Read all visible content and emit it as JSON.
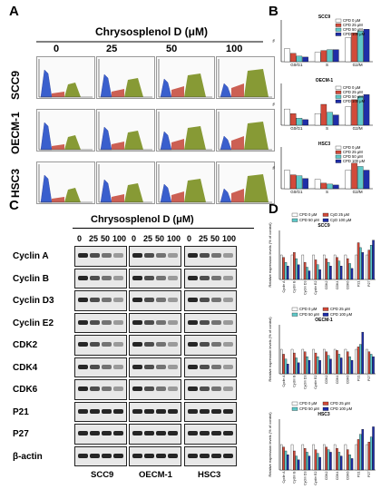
{
  "panel_a": {
    "letter": "A",
    "title": "Chrysosplenol D (μM)",
    "concentrations": [
      "0",
      "25",
      "50",
      "100"
    ],
    "cell_lines": [
      "SCC9",
      "OECM-1",
      "HSC3"
    ]
  },
  "panel_b": {
    "letter": "B"
  },
  "panel_c": {
    "letter": "C",
    "title": "Chrysosplenol D (μM)",
    "lanes": [
      "0",
      "25",
      "50",
      "100"
    ],
    "proteins": [
      "Cyclin A",
      "Cyclin B",
      "Cyclin D3",
      "Cyclin E2",
      "CDK2",
      "CDK4",
      "CDK6",
      "P21",
      "P27",
      "β-actin"
    ],
    "cell_lines": [
      "SCC9",
      "OECM-1",
      "HSC3"
    ]
  },
  "panel_d": {
    "letter": "D"
  },
  "colors": {
    "g1": "#3a5fcd",
    "s": "#c0392b",
    "g2m": "#7a8f1f",
    "cpd0": "#ffffff",
    "cpd25": "#d24a3a",
    "cpd50": "#5ec8c8",
    "cpd100": "#1f2ea8"
  },
  "chart_data": [
    {
      "id": "B-SCC9",
      "type": "bar",
      "title": "SCC9",
      "categories": [
        "G0/G1",
        "S",
        "G2/M"
      ],
      "ylabel": "%",
      "series": [
        {
          "name": "CPD 0 μM",
          "values": [
            28,
            20,
            52
          ]
        },
        {
          "name": "CPD 25 μM",
          "values": [
            18,
            24,
            62
          ]
        },
        {
          "name": "CPD 50 μM",
          "values": [
            12,
            26,
            66
          ]
        },
        {
          "name": "CPD 100 μM",
          "values": [
            10,
            26,
            70
          ]
        }
      ],
      "legend": "top-right"
    },
    {
      "id": "B-OECM-1",
      "type": "bar",
      "title": "OECM-1",
      "categories": [
        "G0/G1",
        "S",
        "G2/M"
      ],
      "ylabel": "%",
      "series": [
        {
          "name": "CPD 0 μM",
          "values": [
            35,
            25,
            40
          ]
        },
        {
          "name": "CPD 25 μM",
          "values": [
            25,
            45,
            55
          ]
        },
        {
          "name": "CPD 50 μM",
          "values": [
            15,
            28,
            62
          ]
        },
        {
          "name": "CPD 100 μM",
          "values": [
            12,
            22,
            66
          ]
        }
      ],
      "legend": "top-right"
    },
    {
      "id": "B-HSC3",
      "type": "bar",
      "title": "HSC3",
      "categories": [
        "G0/G1",
        "S",
        "G2/M"
      ],
      "ylabel": "%",
      "series": [
        {
          "name": "CPD 0 μM",
          "values": [
            40,
            20,
            40
          ]
        },
        {
          "name": "CPD 25 μM",
          "values": [
            30,
            12,
            55
          ]
        },
        {
          "name": "CPD 50 μM",
          "values": [
            28,
            10,
            48
          ]
        },
        {
          "name": "CPD 100 μM",
          "values": [
            22,
            8,
            40
          ]
        }
      ],
      "legend": "top-right"
    },
    {
      "id": "D-SCC9",
      "type": "bar",
      "title": "SCC9",
      "categories": [
        "Cyclin A",
        "Cyclin B",
        "Cyclin D3",
        "Cyclin E2",
        "CDK2",
        "CDK4",
        "CDK6",
        "P21",
        "P27"
      ],
      "ylabel": "Relative expression levels (% of control)",
      "series": [
        {
          "name": "CPD 0 μM",
          "values": [
            100,
            100,
            100,
            100,
            100,
            100,
            100,
            100,
            100
          ]
        },
        {
          "name": "CyD 25 μM",
          "values": [
            90,
            110,
            70,
            80,
            85,
            90,
            85,
            150,
            120
          ]
        },
        {
          "name": "CPD 50 μM",
          "values": [
            70,
            85,
            50,
            60,
            70,
            75,
            65,
            130,
            140
          ]
        },
        {
          "name": "CyD 100 μM",
          "values": [
            55,
            60,
            35,
            40,
            55,
            55,
            45,
            110,
            160
          ]
        }
      ],
      "legend": "top"
    },
    {
      "id": "D-OECM-1",
      "type": "bar",
      "title": "OECM-1",
      "categories": [
        "Cyclin A",
        "Cyclin B",
        "Cyclin D3",
        "Cyclin E2",
        "CDK2",
        "CDK4",
        "CDK6",
        "P21",
        "P27"
      ],
      "ylabel": "Relative expression levels (% of control)",
      "series": [
        {
          "name": "CPD 0 μM",
          "values": [
            100,
            100,
            100,
            100,
            100,
            100,
            100,
            100,
            100
          ]
        },
        {
          "name": "CPD 25 μM",
          "values": [
            80,
            85,
            90,
            85,
            90,
            95,
            90,
            110,
            90
          ]
        },
        {
          "name": "CPD 50 μM",
          "values": [
            60,
            65,
            70,
            70,
            75,
            80,
            70,
            120,
            80
          ]
        },
        {
          "name": "CPD 100 μM",
          "values": [
            40,
            45,
            55,
            55,
            60,
            65,
            55,
            170,
            70
          ]
        }
      ],
      "legend": "top"
    },
    {
      "id": "D-HSC3",
      "type": "bar",
      "title": "HSC3",
      "categories": [
        "Cyclin A",
        "Cyclin B",
        "Cyclin D3",
        "Cyclin E2",
        "CDK2",
        "CDK4",
        "CDK6",
        "P21",
        "P27"
      ],
      "ylabel": "Relative expression levels (% of control)",
      "series": [
        {
          "name": "CPD 0 μM",
          "values": [
            100,
            100,
            100,
            100,
            100,
            100,
            100,
            100,
            100
          ]
        },
        {
          "name": "CPD 25 μM",
          "values": [
            90,
            75,
            85,
            80,
            90,
            85,
            80,
            120,
            110
          ]
        },
        {
          "name": "CPD 50 μM",
          "values": [
            75,
            55,
            70,
            65,
            80,
            70,
            60,
            140,
            130
          ]
        },
        {
          "name": "CPD 100 μM",
          "values": [
            60,
            40,
            55,
            50,
            70,
            55,
            45,
            160,
            170
          ]
        }
      ],
      "legend": "top"
    }
  ]
}
